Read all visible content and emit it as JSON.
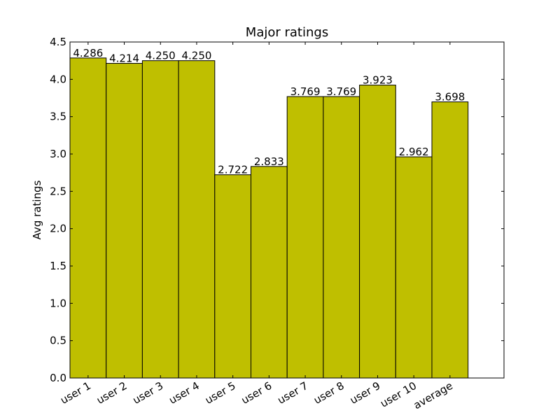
{
  "chart_data": {
    "type": "bar",
    "title": "Major ratings",
    "xlabel": "",
    "ylabel": "Avg ratings",
    "categories": [
      "user 1",
      "user 2",
      "user 3",
      "user 4",
      "user 5",
      "user 6",
      "user 7",
      "user 8",
      "user 9",
      "user 10",
      "average"
    ],
    "values": [
      4.286,
      4.214,
      4.25,
      4.25,
      2.722,
      2.833,
      3.769,
      3.769,
      3.923,
      2.962,
      3.698
    ],
    "value_labels": [
      "4.286",
      "4.214",
      "4.250",
      "4.250",
      "2.722",
      "2.833",
      "3.769",
      "3.769",
      "3.923",
      "2.962",
      "3.698"
    ],
    "ylim": [
      0,
      4.5
    ],
    "yticks": [
      "0.0",
      "0.5",
      "1.0",
      "1.5",
      "2.0",
      "2.5",
      "3.0",
      "3.5",
      "4.0",
      "4.5"
    ],
    "grid": false,
    "bar_color": "#bfbf00",
    "edge_color": "#000000"
  }
}
